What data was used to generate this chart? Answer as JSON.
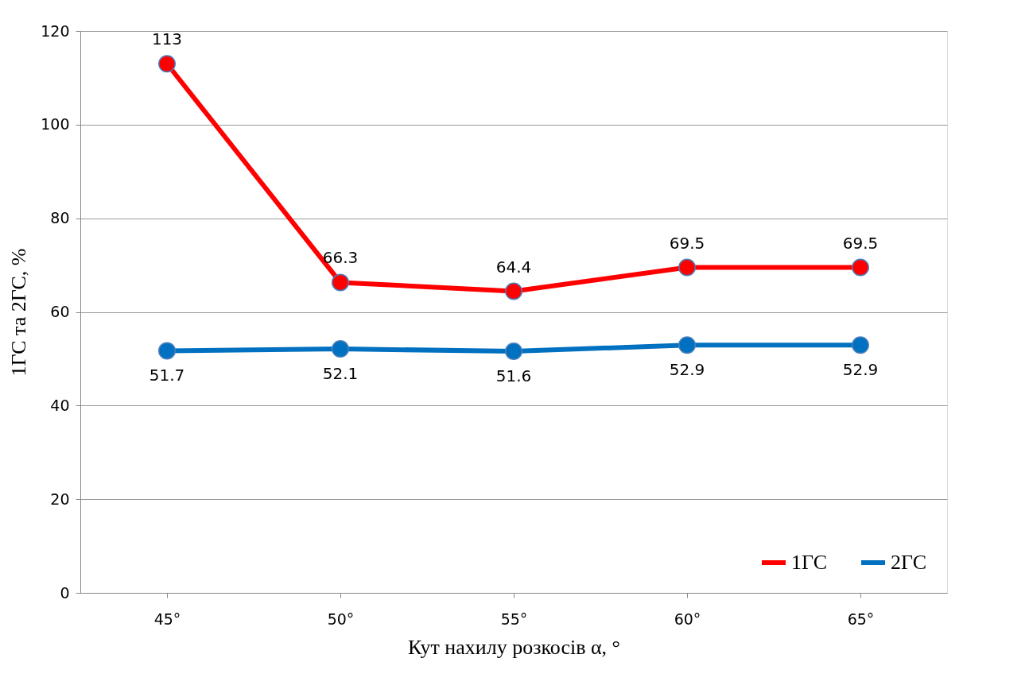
{
  "chart_data": {
    "type": "line",
    "xlabel": "Кут нахилу розкосів α, °",
    "ylabel": "1ГС та 2ГС, %",
    "categories": [
      "45°",
      "50°",
      "55°",
      "60°",
      "65°"
    ],
    "series": [
      {
        "name": "1ГС",
        "color": "#ff0000",
        "values": [
          113,
          66.3,
          64.4,
          69.5,
          69.5
        ]
      },
      {
        "name": "2ГС",
        "color": "#0070c0",
        "values": [
          51.7,
          52.1,
          51.6,
          52.9,
          52.9
        ]
      }
    ],
    "ylim": [
      0,
      120
    ],
    "yticks": [
      0,
      20,
      40,
      60,
      80,
      100,
      120
    ],
    "grid": "y",
    "legend": "bottom right",
    "marker": "circle",
    "line_style": "solid",
    "data_labels": true
  }
}
